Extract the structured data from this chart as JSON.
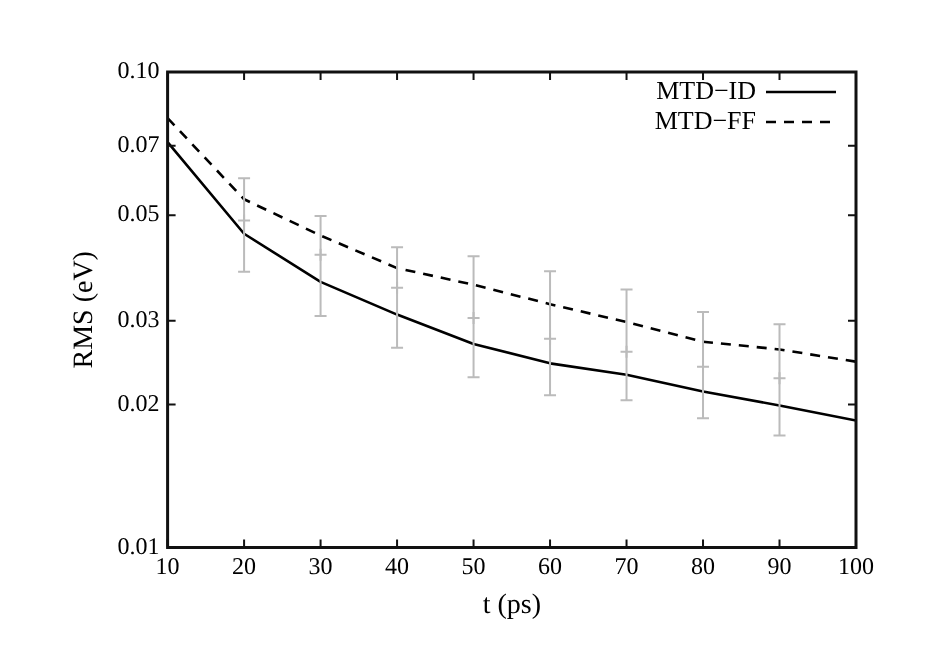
{
  "chart_data": {
    "type": "line",
    "xlabel": "t (ps)",
    "ylabel": "RMS (eV)",
    "log": "y",
    "x": [
      10,
      20,
      30,
      40,
      50,
      60,
      70,
      80,
      90,
      100
    ],
    "xlim": [
      10,
      100
    ],
    "xticks": [
      10,
      20,
      30,
      40,
      50,
      60,
      70,
      80,
      90,
      100
    ],
    "ylim": [
      0.01,
      0.1
    ],
    "yticks": [
      0.01,
      0.02,
      0.03,
      0.05,
      0.07,
      {
        "value": 0.1,
        "label": "0.10"
      }
    ],
    "grid": false,
    "legend": "top right",
    "marker": "none",
    "series": [
      {
        "name": "MTD−ID",
        "color": "#000000",
        "line_style": "solid",
        "values": [
          0.0712,
          0.0457,
          0.0362,
          0.0309,
          0.0268,
          0.0244,
          0.0231,
          0.0213,
          0.0199,
          0.0185
        ]
      },
      {
        "name": "MTD−FF",
        "color": "#000000",
        "line_style": "dashed",
        "values": [
          0.08,
          0.054,
          0.0453,
          0.0387,
          0.0357,
          0.0325,
          0.0298,
          0.0271,
          0.0261,
          0.0246
        ]
      },
      {
        "type": "scatter",
        "color": "#bbbbbb",
        "marker": "cross",
        "x": [
          20,
          30,
          40,
          50,
          60,
          70,
          80,
          90
        ],
        "values": [
          0.0487,
          0.0413,
          0.0352,
          0.0304,
          0.0275,
          0.0258,
          0.024,
          0.0227
        ],
        "errors": [
          [
            0.038,
            0.0598
          ],
          [
            0.0307,
            0.0498
          ],
          [
            0.0263,
            0.0428
          ],
          [
            0.0228,
            0.041
          ],
          [
            0.0209,
            0.0381
          ],
          [
            0.0204,
            0.0349
          ],
          [
            0.0187,
            0.0313
          ],
          [
            0.0172,
            0.0295
          ]
        ]
      }
    ]
  }
}
